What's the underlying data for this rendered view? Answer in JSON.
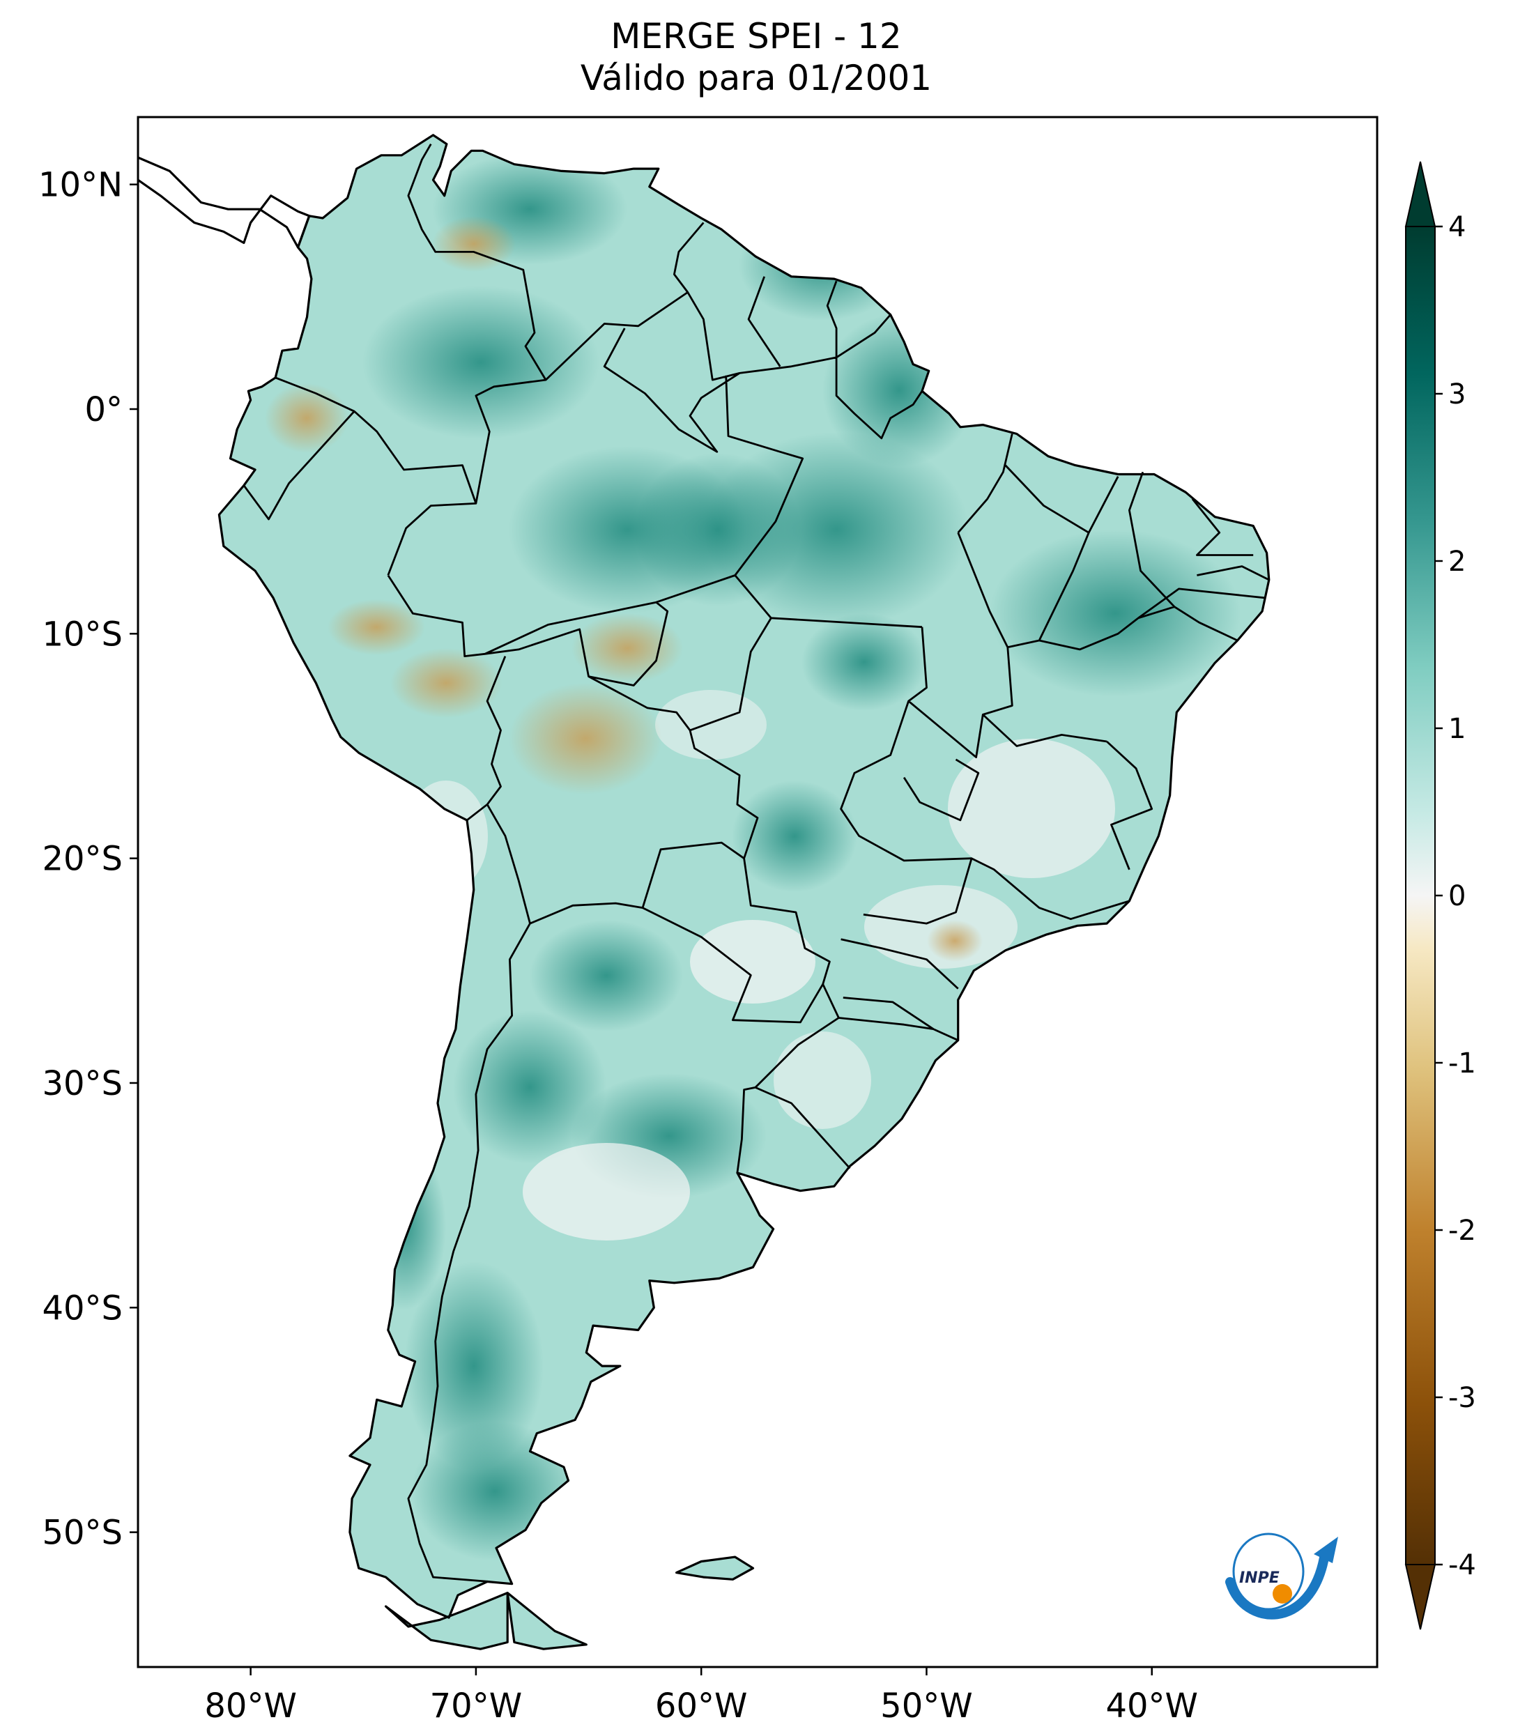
{
  "title": {
    "line1": "MERGE   SPEI - 12",
    "line2": "Válido para 01/2001"
  },
  "map": {
    "type": "choropleth raster map",
    "region": "South America",
    "projection": "Plate Carrée",
    "lon_range": [
      -85,
      -30
    ],
    "lat_range": [
      -56,
      13
    ],
    "lon_ticks": [
      {
        "value": -80,
        "label": "80°W"
      },
      {
        "value": -70,
        "label": "70°W"
      },
      {
        "value": -60,
        "label": "60°W"
      },
      {
        "value": -50,
        "label": "50°W"
      },
      {
        "value": -40,
        "label": "40°W"
      }
    ],
    "lat_ticks": [
      {
        "value": 10,
        "label": "10°N"
      },
      {
        "value": 0,
        "label": "0°"
      },
      {
        "value": -10,
        "label": "10°S"
      },
      {
        "value": -20,
        "label": "20°S"
      },
      {
        "value": -30,
        "label": "30°S"
      },
      {
        "value": -40,
        "label": "40°S"
      },
      {
        "value": -50,
        "label": "50°S"
      }
    ],
    "borders": "country and Brazilian state boundaries",
    "ocean_color": "#ffffff"
  },
  "colorbar": {
    "range": [
      -4,
      4
    ],
    "extend": "both",
    "colormap": "BrBG",
    "ticks": [
      {
        "value": 4,
        "label": "4"
      },
      {
        "value": 3,
        "label": "3"
      },
      {
        "value": 2,
        "label": "2"
      },
      {
        "value": 1,
        "label": "1"
      },
      {
        "value": 0,
        "label": "0"
      },
      {
        "value": -1,
        "label": "-1"
      },
      {
        "value": -2,
        "label": "-2"
      },
      {
        "value": -3,
        "label": "-3"
      },
      {
        "value": -4,
        "label": "-4"
      }
    ],
    "colors": {
      "high": "#003c30",
      "mid_high": "#35978f",
      "neutral": "#f5f5f5",
      "mid_low": "#dfc27d",
      "low": "#543005"
    }
  },
  "logo": {
    "text": "INPE",
    "arrow_color": "#1a78c2",
    "dot_color": "#f08c00"
  }
}
